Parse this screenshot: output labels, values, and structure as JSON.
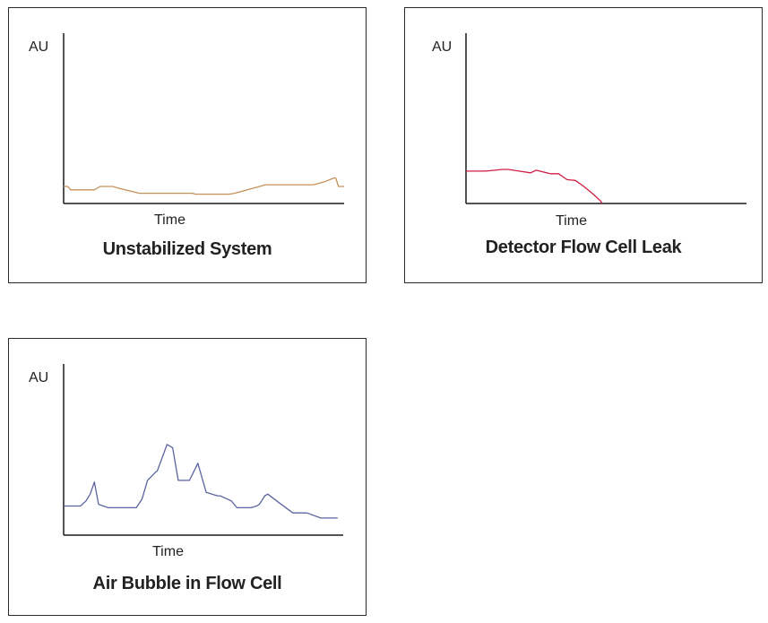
{
  "chart_data": [
    {
      "type": "line",
      "title": "Unstabilized System",
      "xlabel": "Time",
      "ylabel": "AU",
      "xlim": [
        0,
        100
      ],
      "ylim": [
        0,
        100
      ],
      "color": "#c4915a",
      "series": [
        {
          "x": [
            0,
            1.5,
            2.5,
            11,
            13,
            17.5,
            19.5,
            27,
            28,
            37,
            46,
            47,
            49,
            59,
            61,
            72,
            82.5,
            89,
            92.5,
            96.5,
            97,
            98,
            100
          ],
          "y": [
            10,
            10,
            8,
            8,
            10,
            10,
            9,
            6,
            6,
            6,
            6,
            5.5,
            5.5,
            5.5,
            6,
            11,
            11,
            11,
            12.5,
            15,
            15,
            10,
            10
          ]
        }
      ]
    },
    {
      "type": "line",
      "title": "Detector Flow Cell Leak",
      "xlabel": "Time",
      "ylabel": "AU",
      "xlim": [
        0,
        100
      ],
      "ylim": [
        0,
        100
      ],
      "color": "#d01c44",
      "series": [
        {
          "x": [
            0,
            7,
            13,
            15,
            19,
            23,
            25,
            30,
            33,
            36,
            39,
            42,
            45,
            48,
            48.5
          ],
          "y": [
            19,
            19,
            20,
            20,
            19,
            18,
            19.5,
            17.5,
            17.5,
            14,
            13.5,
            10,
            6,
            1.5,
            0
          ]
        }
      ]
    },
    {
      "type": "line",
      "title": "Air Bubble in Flow Cell",
      "xlabel": "Time",
      "ylabel": "AU",
      "xlim": [
        0,
        100
      ],
      "ylim": [
        0,
        100
      ],
      "color": "#5c64a0",
      "series": [
        {
          "x": [
            0,
            6,
            8,
            9.5,
            11,
            12.5,
            16,
            17,
            21,
            26,
            28,
            30,
            33,
            33.5,
            37,
            39,
            41,
            43,
            45,
            48,
            51,
            55,
            56,
            60,
            61,
            62,
            67,
            69,
            70,
            72,
            73,
            77,
            82,
            87,
            92,
            97,
            98
          ],
          "y": [
            17,
            17,
            20,
            24,
            31,
            18,
            16,
            16,
            16,
            16,
            21,
            32,
            37,
            37.5,
            53,
            51,
            32,
            32,
            32,
            42,
            25,
            23,
            23,
            20,
            18,
            16,
            16,
            17,
            18,
            23,
            24,
            19,
            13,
            13,
            10,
            10,
            10
          ]
        }
      ]
    }
  ]
}
